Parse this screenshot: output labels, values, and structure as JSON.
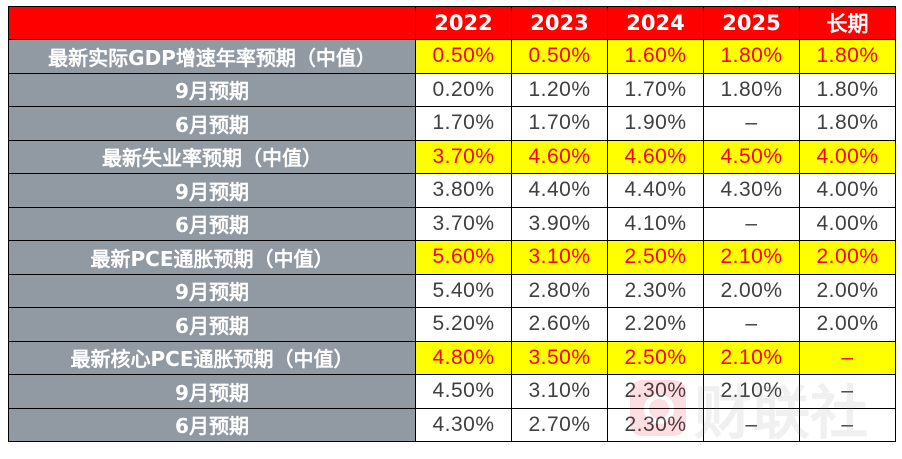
{
  "header": {
    "corner": "",
    "columns": [
      "2022",
      "2023",
      "2024",
      "2025",
      "长期"
    ]
  },
  "rows": [
    {
      "label": "最新实际GDP增速年率预期（中值）",
      "highlight": true,
      "values": [
        "0.50%",
        "0.50%",
        "1.60%",
        "1.80%",
        "1.80%"
      ]
    },
    {
      "label": "9月预期",
      "highlight": false,
      "values": [
        "0.20%",
        "1.20%",
        "1.70%",
        "1.80%",
        "1.80%"
      ]
    },
    {
      "label": "6月预期",
      "highlight": false,
      "values": [
        "1.70%",
        "1.70%",
        "1.90%",
        "–",
        "1.80%"
      ]
    },
    {
      "label": "最新失业率预期（中值）",
      "highlight": true,
      "values": [
        "3.70%",
        "4.60%",
        "4.60%",
        "4.50%",
        "4.00%"
      ]
    },
    {
      "label": "9月预期",
      "highlight": false,
      "values": [
        "3.80%",
        "4.40%",
        "4.40%",
        "4.30%",
        "4.00%"
      ]
    },
    {
      "label": "6月预期",
      "highlight": false,
      "values": [
        "3.70%",
        "3.90%",
        "4.10%",
        "–",
        "4.00%"
      ]
    },
    {
      "label": "最新PCE通胀预期（中值）",
      "highlight": true,
      "values": [
        "5.60%",
        "3.10%",
        "2.50%",
        "2.10%",
        "2.00%"
      ]
    },
    {
      "label": "9月预期",
      "highlight": false,
      "values": [
        "5.40%",
        "2.80%",
        "2.30%",
        "2.00%",
        "2.00%"
      ]
    },
    {
      "label": "6月预期",
      "highlight": false,
      "values": [
        "5.20%",
        "2.60%",
        "2.20%",
        "–",
        "2.00%"
      ]
    },
    {
      "label": "最新核心PCE通胀预期（中值）",
      "highlight": true,
      "values": [
        "4.80%",
        "3.50%",
        "2.50%",
        "2.10%",
        "–"
      ]
    },
    {
      "label": "9月预期",
      "highlight": false,
      "values": [
        "4.50%",
        "3.10%",
        "2.30%",
        "2.10%",
        "–"
      ]
    },
    {
      "label": "6月预期",
      "highlight": false,
      "values": [
        "4.30%",
        "2.70%",
        "2.30%",
        "–",
        "–"
      ]
    }
  ],
  "colors": {
    "header_bg": "#ff0000",
    "header_text": "#ffffff",
    "label_bg": "#9199a3",
    "label_text": "#ffffff",
    "highlight_bg": "#ffff00",
    "highlight_text": "#ff0000",
    "value_text": "#404040"
  },
  "watermark": {
    "text": "财联社"
  }
}
